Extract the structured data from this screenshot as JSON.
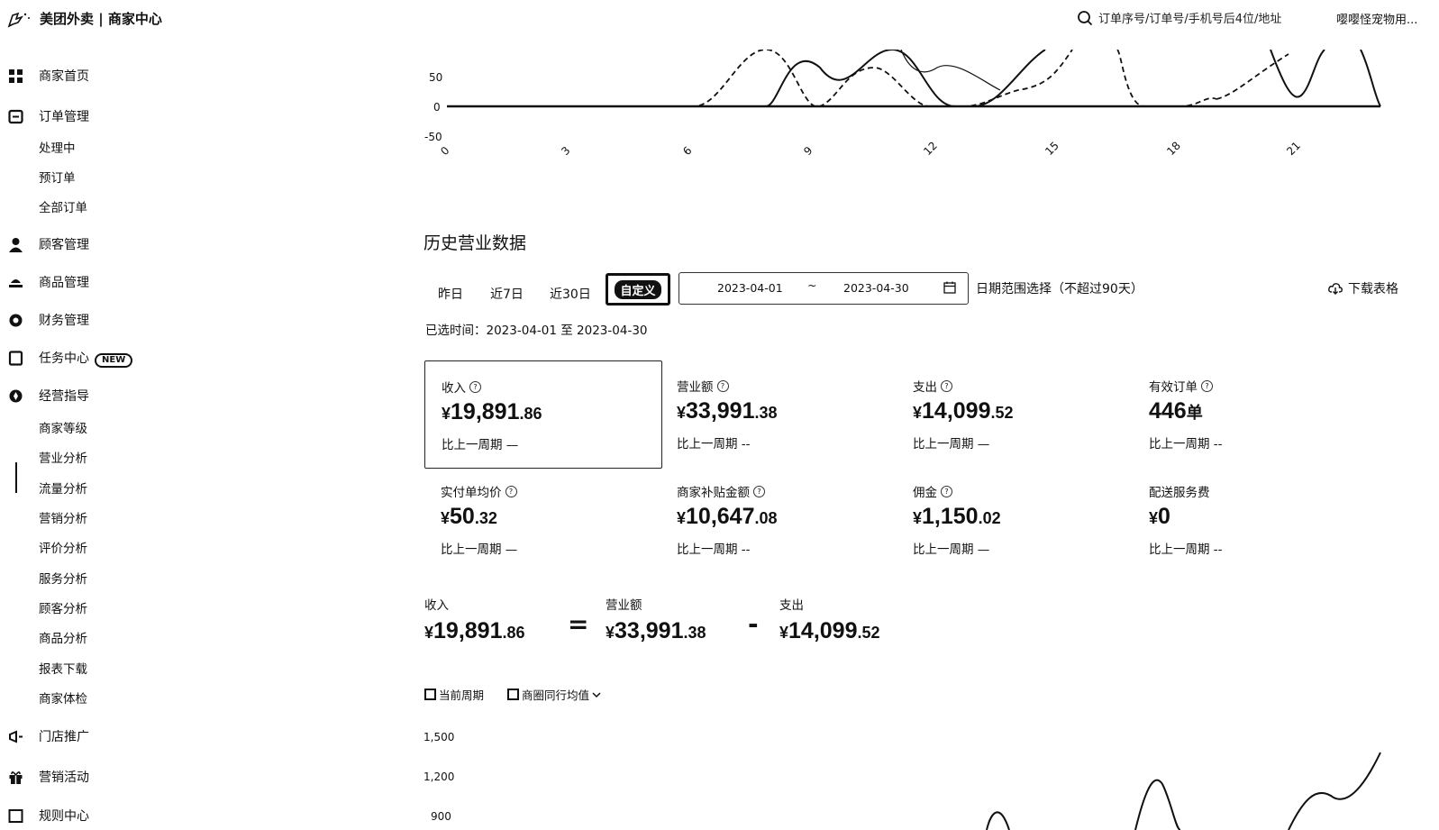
{
  "app": {
    "title": "美团外卖 | 商家中心"
  },
  "header": {
    "search_placeholder": "订单序号/订单号/手机号后4位/地址",
    "user_name": "嘤嘤怪宠物用..."
  },
  "sidebar": {
    "items": [
      {
        "label": "商家首页",
        "icon": "dashboard-icon"
      },
      {
        "label": "订单管理",
        "icon": "order-icon",
        "children": [
          "处理中",
          "预订单",
          "全部订单"
        ]
      },
      {
        "label": "顾客管理",
        "icon": "user-icon"
      },
      {
        "label": "商品管理",
        "icon": "goods-icon"
      },
      {
        "label": "财务管理",
        "icon": "finance-icon"
      },
      {
        "label": "任务中心",
        "icon": "task-icon",
        "badge": "NEW"
      },
      {
        "label": "经营指导",
        "icon": "guide-icon",
        "children": [
          "商家等级",
          "营业分析",
          "流量分析",
          "营销分析",
          "评价分析",
          "服务分析",
          "顾客分析",
          "商品分析",
          "报表下载",
          "商家体检"
        ]
      },
      {
        "label": "门店推广",
        "icon": "megaphone-icon"
      },
      {
        "label": "营销活动",
        "icon": "gift-icon"
      },
      {
        "label": "规则中心",
        "icon": "rule-icon"
      }
    ],
    "active": "营业分析"
  },
  "top_chart": {
    "y_ticks": [
      "50",
      "0",
      "-50"
    ],
    "x_ticks": [
      "0",
      "3",
      "6",
      "9",
      "12",
      "15",
      "18",
      "21"
    ]
  },
  "history": {
    "title": "历史营业数据",
    "tabs": [
      "昨日",
      "近7日",
      "近30日",
      "自定义"
    ],
    "active_tab": "自定义",
    "date_start": "2023-04-01",
    "date_sep": "~",
    "date_end": "2023-04-30",
    "date_hint": "日期范围选择（不超过90天）",
    "download_label": "下载表格",
    "selected_text": "已选时间：2023-04-01 至 2023-04-30"
  },
  "metrics": [
    {
      "title": "收入",
      "help": true,
      "cur": "¥",
      "int": "19,891",
      "dec": ".86",
      "unit": "",
      "compare": "比上一周期 —"
    },
    {
      "title": "营业额",
      "help": true,
      "cur": "¥",
      "int": "33,991",
      "dec": ".38",
      "unit": "",
      "compare": "比上一周期 --"
    },
    {
      "title": "支出",
      "help": true,
      "cur": "¥",
      "int": "14,099",
      "dec": ".52",
      "unit": "",
      "compare": "比上一周期 —"
    },
    {
      "title": "有效订单",
      "help": true,
      "cur": "",
      "int": "446",
      "dec": "",
      "unit": "单",
      "compare": "比上一周期 --"
    },
    {
      "title": "实付单均价",
      "help": true,
      "cur": "¥",
      "int": "50",
      "dec": ".32",
      "unit": "",
      "compare": "比上一周期 —"
    },
    {
      "title": "商家补贴金额",
      "help": true,
      "cur": "¥",
      "int": "10,647",
      "dec": ".08",
      "unit": "",
      "compare": "比上一周期 --"
    },
    {
      "title": "佣金",
      "help": true,
      "cur": "¥",
      "int": "1,150",
      "dec": ".02",
      "unit": "",
      "compare": "比上一周期 —"
    },
    {
      "title": "配送服务费",
      "help": false,
      "cur": "¥",
      "int": "0",
      "dec": "",
      "unit": "",
      "compare": "比上一周期 --"
    }
  ],
  "equation": {
    "left": {
      "title": "收入",
      "cur": "¥",
      "int": "19,891",
      "dec": ".86"
    },
    "eq": "=",
    "mid": {
      "title": "营业额",
      "cur": "¥",
      "int": "33,991",
      "dec": ".38"
    },
    "minus": "-",
    "right": {
      "title": "支出",
      "cur": "¥",
      "int": "14,099",
      "dec": ".52"
    }
  },
  "bottom_chart": {
    "legend": [
      "当前周期",
      "商圈同行均值"
    ],
    "y_ticks": [
      "1,500",
      "1,200",
      "900"
    ]
  }
}
